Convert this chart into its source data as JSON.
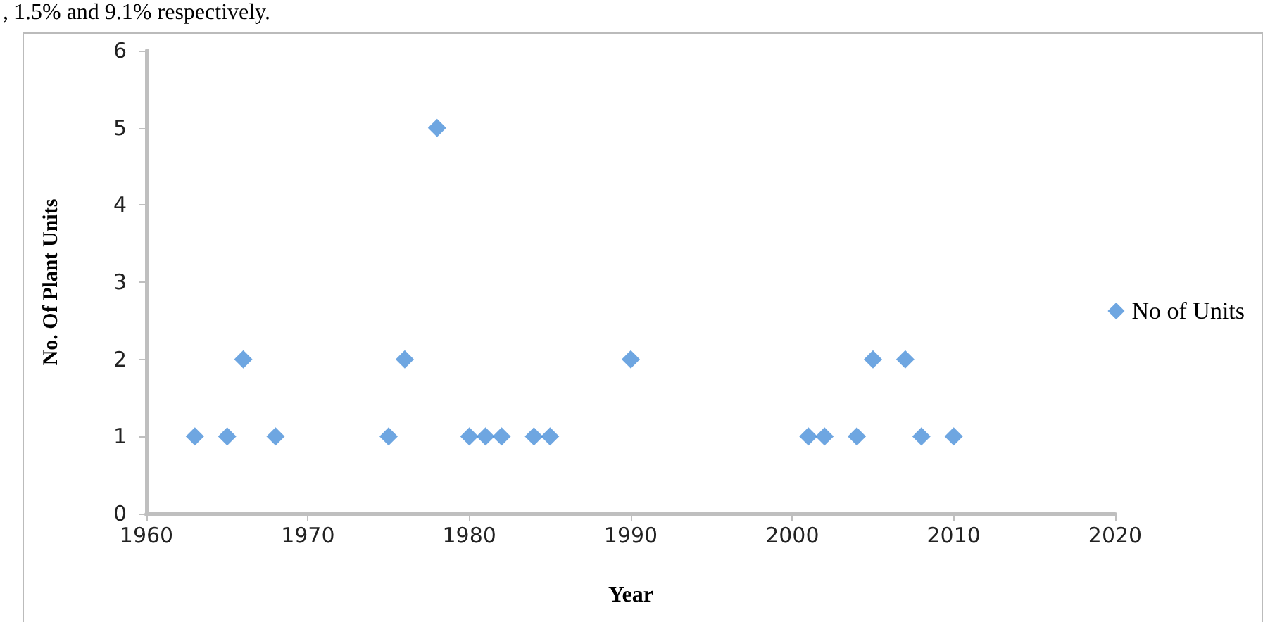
{
  "chart_data": {
    "type": "scatter",
    "xlabel": "Year",
    "ylabel": "No. Of Plant Units",
    "annotations": [
      ", 1.5% and 9.1% respectively."
    ],
    "x": [
      1963,
      1965,
      1966,
      1968,
      1975,
      1976,
      1978,
      1980,
      1981,
      1982,
      1984,
      1985,
      1990,
      2001,
      2002,
      2004,
      2005,
      2007,
      2008,
      2010
    ],
    "series": [
      {
        "name": "No of Units",
        "color": "#4a90d9",
        "values": [
          1,
          1,
          2,
          1,
          1,
          2,
          5,
          1,
          1,
          1,
          1,
          1,
          2,
          1,
          1,
          1,
          2,
          2,
          1,
          1
        ]
      }
    ],
    "xlim": [
      1960,
      2020
    ],
    "xticks": [
      1960,
      1970,
      1980,
      1990,
      2000,
      2010,
      2020
    ],
    "ylim": [
      0,
      6
    ],
    "yticks": [
      0,
      1,
      2,
      3,
      4,
      5,
      6
    ],
    "marker": "diamond",
    "legend": "right",
    "grid": false
  }
}
